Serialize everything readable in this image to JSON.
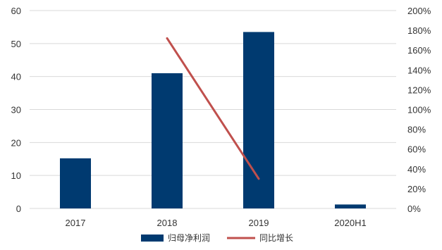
{
  "chart_data": {
    "type": "bar",
    "categories": [
      "2017",
      "2018",
      "2019",
      "2020H1"
    ],
    "series": [
      {
        "name": "归母净利润",
        "type": "bar",
        "axis": "left",
        "color": "#003a70",
        "values": [
          15.2,
          41,
          53.5,
          1.2
        ]
      },
      {
        "name": "同比增长",
        "type": "line",
        "axis": "right",
        "color": "#c0504d",
        "values": [
          null,
          1.72,
          0.3,
          null
        ]
      }
    ],
    "y_left": {
      "min": 0,
      "max": 60,
      "ticks": [
        0,
        10,
        20,
        30,
        40,
        50,
        60
      ],
      "tick_labels": [
        "0",
        "10",
        "20",
        "30",
        "40",
        "50",
        "60"
      ]
    },
    "y_right": {
      "min": 0,
      "max": 2,
      "ticks": [
        0,
        0.2,
        0.4,
        0.6,
        0.8,
        1.0,
        1.2,
        1.4,
        1.6,
        1.8,
        2.0
      ],
      "tick_labels": [
        "0%",
        "20%",
        "40%",
        "60%",
        "80%",
        "100%",
        "120%",
        "140%",
        "160%",
        "180%",
        "200%"
      ]
    },
    "grid": true,
    "legend_position": "bottom"
  }
}
